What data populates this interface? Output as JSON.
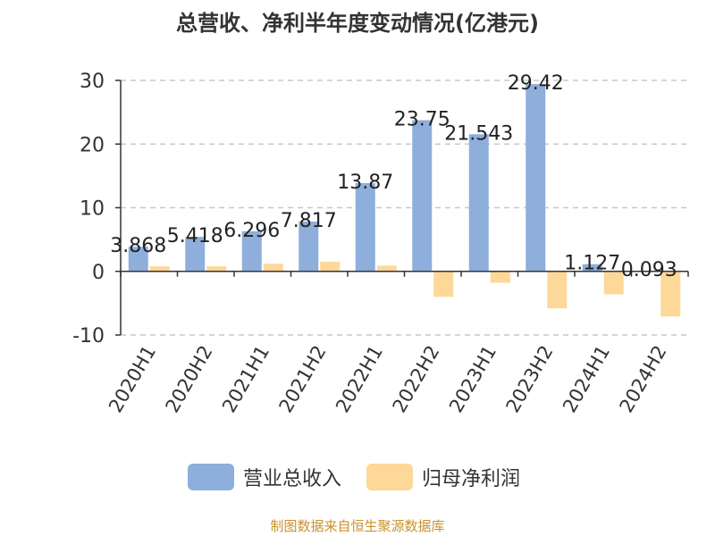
{
  "chart_data": {
    "type": "bar",
    "title": "总营收、净利半年度变动情况(亿港元)",
    "categories": [
      "2020H1",
      "2020H2",
      "2021H1",
      "2021H2",
      "2022H1",
      "2022H2",
      "2023H1",
      "2023H2",
      "2024H1",
      "2024H2"
    ],
    "series": [
      {
        "name": "营业总收入",
        "color": "#8eaedb",
        "values": [
          3.868,
          5.418,
          6.296,
          7.817,
          13.87,
          23.75,
          21.543,
          29.42,
          1.127,
          0.093
        ],
        "labels": [
          "3.868",
          "5.418",
          "6.296",
          "7.817",
          "13.87",
          "23.75",
          "21.543",
          "29.42",
          "1.127",
          "0.093"
        ]
      },
      {
        "name": "归母净利润",
        "color": "#fdd898",
        "values": [
          0.8,
          0.8,
          1.2,
          1.5,
          0.9,
          -4.0,
          -1.8,
          -5.8,
          -3.6,
          -7.1
        ]
      }
    ],
    "ylim": [
      -10,
      30
    ],
    "yticks": [
      -10,
      0,
      10,
      20,
      30
    ],
    "grid": true,
    "legend_position": "bottom"
  },
  "footer": "制图数据来自恒生聚源数据库"
}
